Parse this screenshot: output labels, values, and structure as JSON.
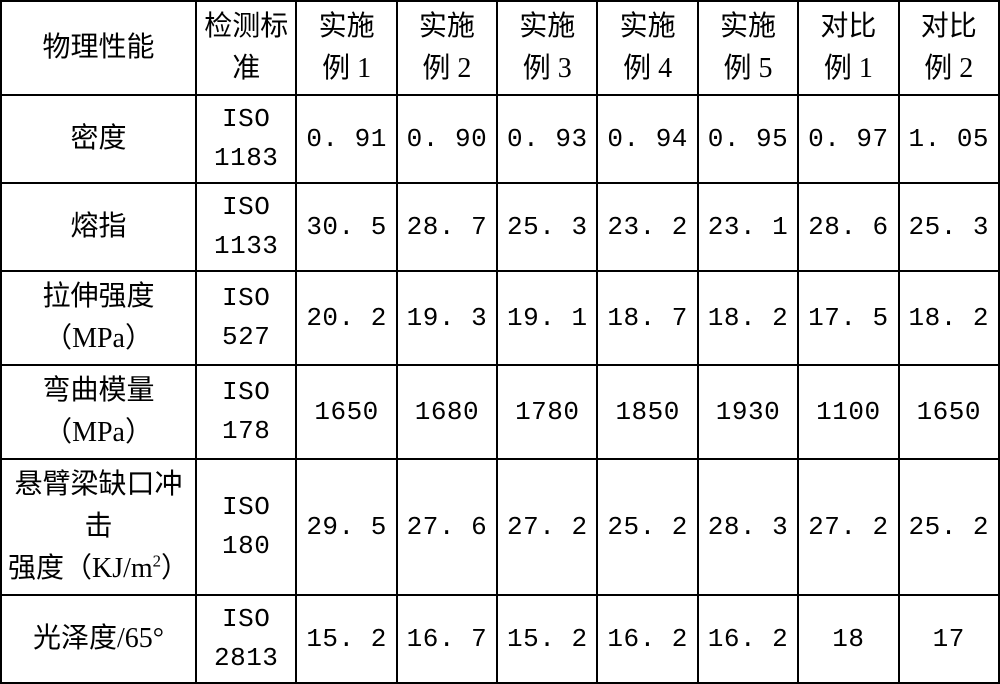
{
  "table": {
    "header": {
      "property": "物理性能",
      "standard_l1": "检测标",
      "standard_l2": "准",
      "ex_l1": "实施",
      "ex_l2_1": "例 1",
      "ex_l2_2": "例 2",
      "ex_l2_3": "例 3",
      "ex_l2_4": "例 4",
      "ex_l2_5": "例 5",
      "cmp_l1": "对比",
      "cmp_l2_1": "例 1",
      "cmp_l2_2": "例 2"
    },
    "rows": [
      {
        "prop_html": "密度",
        "std_html": "ISO<br>1183",
        "v": [
          "0. 91",
          "0. 90",
          "0. 93",
          "0. 94",
          "0. 95",
          "0. 97",
          "1. 05"
        ]
      },
      {
        "prop_html": "熔指",
        "std_html": "ISO<br>1133",
        "v": [
          "30. 5",
          "28. 7",
          "25. 3",
          "23. 2",
          "23. 1",
          "28. 6",
          "25. 3"
        ]
      },
      {
        "prop_html": "拉伸强度（MPa）",
        "std_html": "ISO 527",
        "v": [
          "20. 2",
          "19. 3",
          "19. 1",
          "18. 7",
          "18. 2",
          "17. 5",
          "18. 2"
        ]
      },
      {
        "prop_html": "弯曲模量（MPa）",
        "std_html": "ISO 178",
        "v": [
          "1650",
          "1680",
          "1780",
          "1850",
          "1930",
          "1100",
          "1650"
        ]
      },
      {
        "prop_html": "悬臂梁缺口冲击<br>强度（KJ/m<span class=\"sup\">2</span>）",
        "std_html": "ISO 180",
        "v": [
          "29. 5",
          "27. 6",
          "27. 2",
          "25. 2",
          "28. 3",
          "27. 2",
          "25. 2"
        ]
      },
      {
        "prop_html": "光泽度/65°",
        "std_html": "ISO<br>2813",
        "v": [
          "15. 2",
          "16. 7",
          "15. 2",
          "16. 2",
          "16. 2",
          "18",
          "17"
        ]
      }
    ],
    "style": {
      "border_color": "#000000",
      "background_color": "#ffffff",
      "text_color": "#000000",
      "header_fontsize": 28,
      "body_fontsize": 28,
      "mono_font": "Courier New",
      "cjk_font": "SimSun"
    }
  }
}
